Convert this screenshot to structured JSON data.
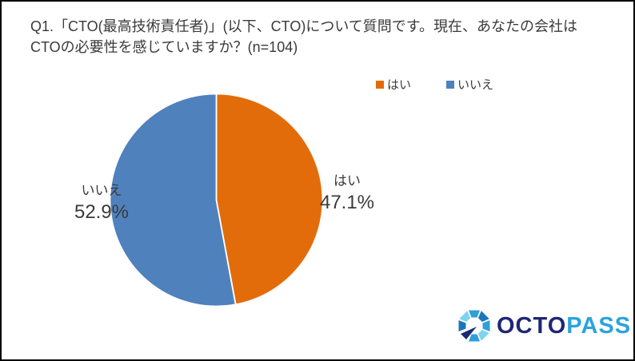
{
  "title": {
    "text": "Q1.「CTO(最高技術責任者)」(以下、CTO)について質問です。現在、あなたの会社はCTOの必要性を感じていますか？(n=104)"
  },
  "chart_data": {
    "type": "pie",
    "title": "Q1. CTOの必要性を感じていますか？",
    "sample_size_label": "n=104",
    "categories": [
      "はい",
      "いいえ"
    ],
    "values": [
      47.1,
      52.9
    ],
    "unit": "%",
    "colors": [
      "#E36C0A",
      "#4F81BD"
    ],
    "start_angle_deg": 0,
    "direction": "clockwise",
    "legend_position": "top",
    "labels": [
      {
        "name": "はい",
        "value_text": "47.1%"
      },
      {
        "name": "いいえ",
        "value_text": "52.9%"
      }
    ]
  },
  "legend": {
    "items": [
      {
        "label": "はい",
        "color": "#E36C0A"
      },
      {
        "label": "いいえ",
        "color": "#4F81BD"
      }
    ]
  },
  "logo": {
    "text_primary": "OCTO",
    "text_secondary": "PASS",
    "primary_color": "#1F2677",
    "secondary_color": "#2BA3DC",
    "icon_colors": [
      "#2E9FD9",
      "#1B75BB",
      "#2E9FD9",
      "#7ED3F0",
      "#2E9FD9",
      "#1B75BB",
      "#7ED3F0"
    ],
    "arrow_color": "#1B2A6E"
  }
}
